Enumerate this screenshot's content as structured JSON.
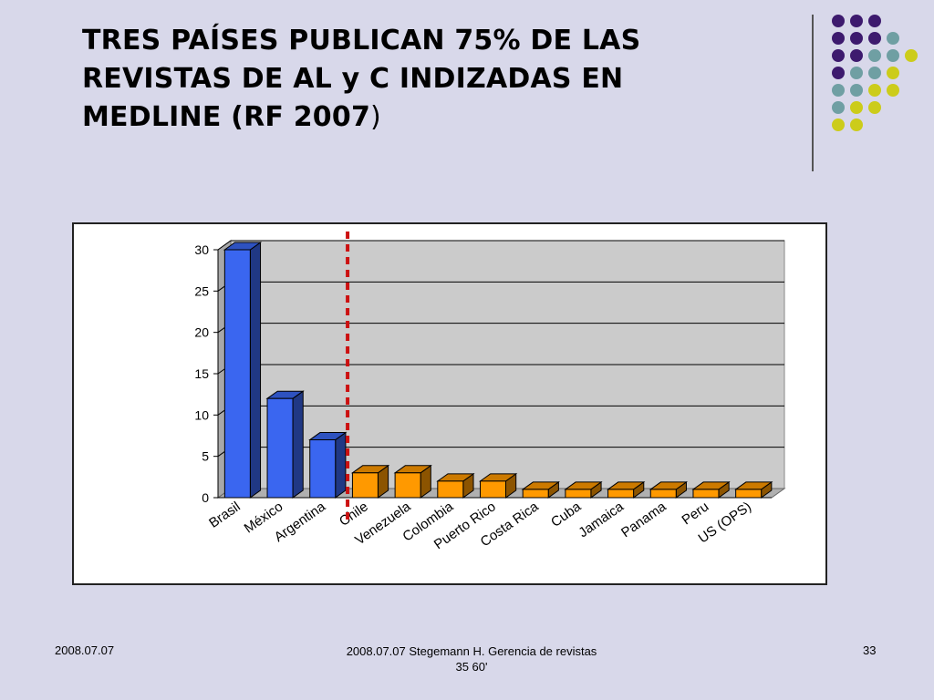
{
  "slide": {
    "title_line1": "TRES PAÍSES PUBLICAN 75% DE LAS",
    "title_line2": "REVISTAS DE AL y C INDIZADAS EN",
    "title_line3": "MEDLINE (RF 2007",
    "title_close_paren": ")"
  },
  "footer": {
    "date": "2008.07.07",
    "center_line1": "2008.07.07 Stegemann H. Gerencia de revistas",
    "center_line2": "35           60'",
    "page_number": "33"
  },
  "colors": {
    "background": "#d8d8ea",
    "highlight_bars": "#3a66f0",
    "other_bars": "#ff9900",
    "divider_line": "#cc1111",
    "plot_area": "#cbcbcb",
    "dot_purple": "#3d1a6e",
    "dot_teal": "#6f9fa3",
    "dot_yellow": "#cccc1a"
  },
  "chart_data": {
    "type": "bar",
    "style": "3d",
    "categories": [
      "Brasil",
      "México",
      "Argentina",
      "Chile",
      "Venezuela",
      "Colombia",
      "Puerto Rico",
      "Costa Rica",
      "Cuba",
      "Jamaica",
      "Panama",
      "Peru",
      "US (OPS)"
    ],
    "values": [
      30,
      12,
      7,
      3,
      3,
      2,
      2,
      1,
      1,
      1,
      1,
      1,
      1
    ],
    "highlight_count": 3,
    "y_ticks": [
      "0",
      "5",
      "10",
      "15",
      "20",
      "25",
      "30"
    ],
    "ylim": [
      0,
      30
    ],
    "grid": true,
    "legend": "none",
    "title": "",
    "xlabel": "",
    "ylabel": ""
  }
}
